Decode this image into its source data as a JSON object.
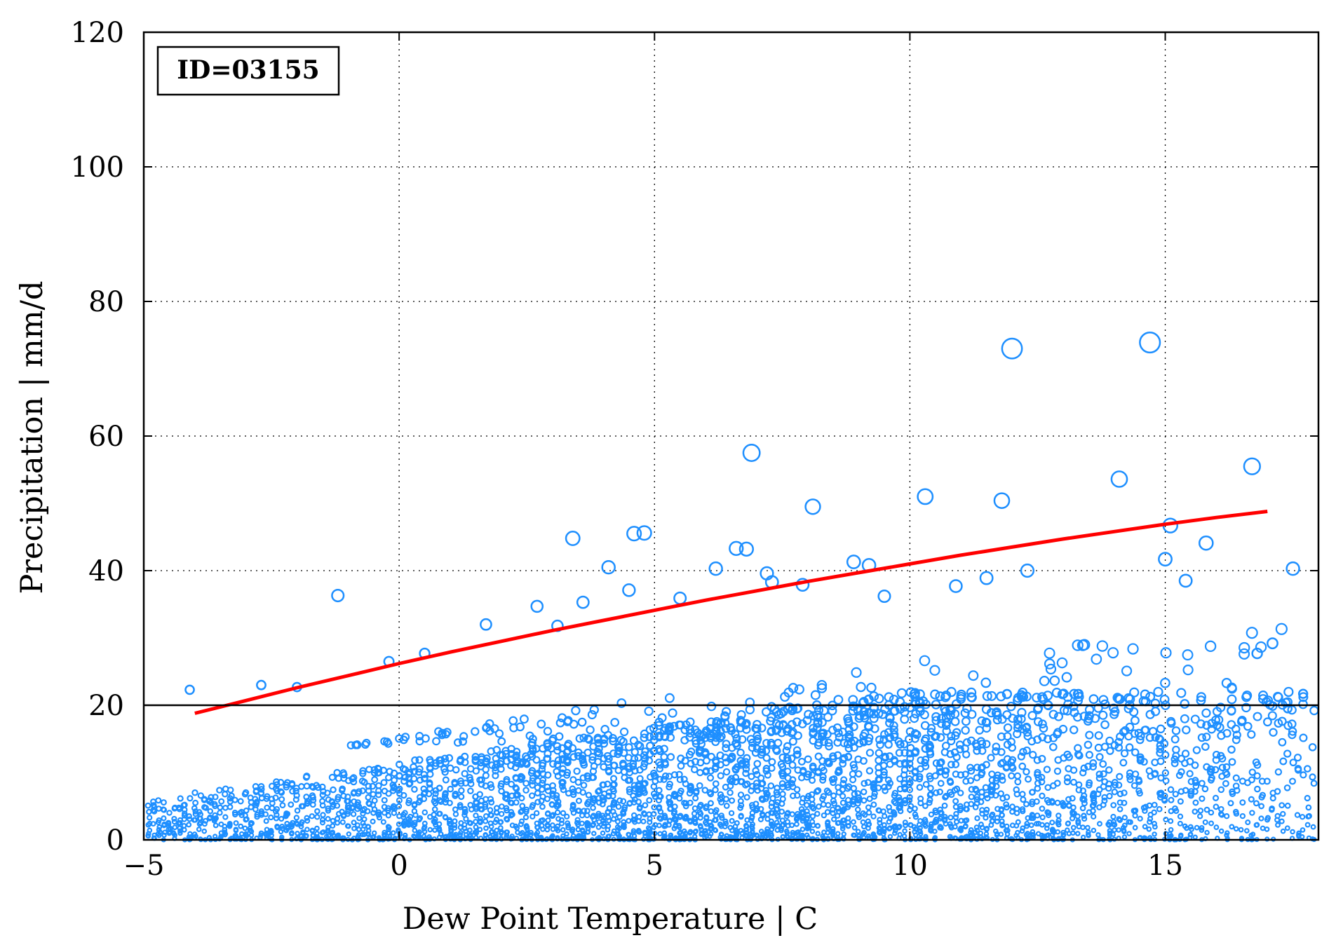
{
  "chart_data": {
    "type": "scatter",
    "title": "",
    "annotation": "ID=03155",
    "xlabel": "Dew Point Temperature | C",
    "ylabel": "Precipitation | mm/d",
    "xlim": [
      -5,
      18
    ],
    "ylim": [
      0,
      120
    ],
    "x_ticks": [
      -5,
      0,
      5,
      10,
      15
    ],
    "x_tick_labels": [
      "−5",
      "0",
      "5",
      "10",
      "15"
    ],
    "y_ticks": [
      0,
      20,
      40,
      60,
      80,
      100,
      120
    ],
    "y_tick_labels": [
      "0",
      "20",
      "40",
      "60",
      "80",
      "100",
      "120"
    ],
    "grid": "dotted",
    "horizontal_reference_line": 20,
    "colors": {
      "scatter": "#1e8fff",
      "fit_line": "#ff0000",
      "reference_line": "#000000"
    },
    "fit_line": {
      "name": "",
      "x": [
        -4.0,
        -3.0,
        -2.0,
        -1.0,
        0.0,
        1.0,
        2.0,
        3.0,
        4.0,
        5.0,
        6.0,
        7.0,
        8.0,
        9.0,
        10.0,
        11.0,
        12.0,
        13.0,
        14.0,
        15.0,
        16.0,
        17.0
      ],
      "y": [
        18.8,
        20.7,
        22.6,
        24.4,
        26.2,
        27.9,
        29.5,
        31.1,
        32.6,
        34.1,
        35.6,
        37.0,
        38.4,
        39.7,
        41.0,
        42.3,
        43.5,
        44.7,
        45.8,
        46.9,
        47.9,
        48.8
      ]
    },
    "highlighted_points": [
      {
        "x": -4.1,
        "y": 22.3
      },
      {
        "x": -1.2,
        "y": 36.3
      },
      {
        "x": -2.7,
        "y": 23.0
      },
      {
        "x": -2.0,
        "y": 22.7
      },
      {
        "x": -0.2,
        "y": 26.5
      },
      {
        "x": 0.5,
        "y": 27.7
      },
      {
        "x": 1.7,
        "y": 32.0
      },
      {
        "x": 2.7,
        "y": 34.7
      },
      {
        "x": 3.1,
        "y": 31.8
      },
      {
        "x": 3.4,
        "y": 44.8
      },
      {
        "x": 3.6,
        "y": 35.3
      },
      {
        "x": 4.1,
        "y": 40.5
      },
      {
        "x": 4.5,
        "y": 37.1
      },
      {
        "x": 4.6,
        "y": 45.5
      },
      {
        "x": 4.8,
        "y": 45.6
      },
      {
        "x": 5.5,
        "y": 35.9
      },
      {
        "x": 6.2,
        "y": 40.3
      },
      {
        "x": 6.6,
        "y": 43.3
      },
      {
        "x": 6.8,
        "y": 43.2
      },
      {
        "x": 6.9,
        "y": 57.5
      },
      {
        "x": 7.2,
        "y": 39.6
      },
      {
        "x": 7.3,
        "y": 38.3
      },
      {
        "x": 7.9,
        "y": 37.9
      },
      {
        "x": 8.1,
        "y": 49.5
      },
      {
        "x": 8.9,
        "y": 41.3
      },
      {
        "x": 9.2,
        "y": 40.8
      },
      {
        "x": 9.5,
        "y": 36.2
      },
      {
        "x": 10.3,
        "y": 51.0
      },
      {
        "x": 10.9,
        "y": 37.7
      },
      {
        "x": 11.5,
        "y": 38.9
      },
      {
        "x": 11.8,
        "y": 50.4
      },
      {
        "x": 12.0,
        "y": 73.0
      },
      {
        "x": 12.3,
        "y": 40.0
      },
      {
        "x": 14.1,
        "y": 53.6
      },
      {
        "x": 14.7,
        "y": 73.9
      },
      {
        "x": 15.0,
        "y": 41.7
      },
      {
        "x": 15.1,
        "y": 46.7
      },
      {
        "x": 15.4,
        "y": 38.5
      },
      {
        "x": 15.8,
        "y": 44.1
      },
      {
        "x": 16.7,
        "y": 55.5
      },
      {
        "x": 17.5,
        "y": 40.3
      },
      {
        "x": 17.1,
        "y": 29.2
      },
      {
        "x": 17.7,
        "y": 21.7
      },
      {
        "x": 16.8,
        "y": 27.7
      }
    ]
  }
}
